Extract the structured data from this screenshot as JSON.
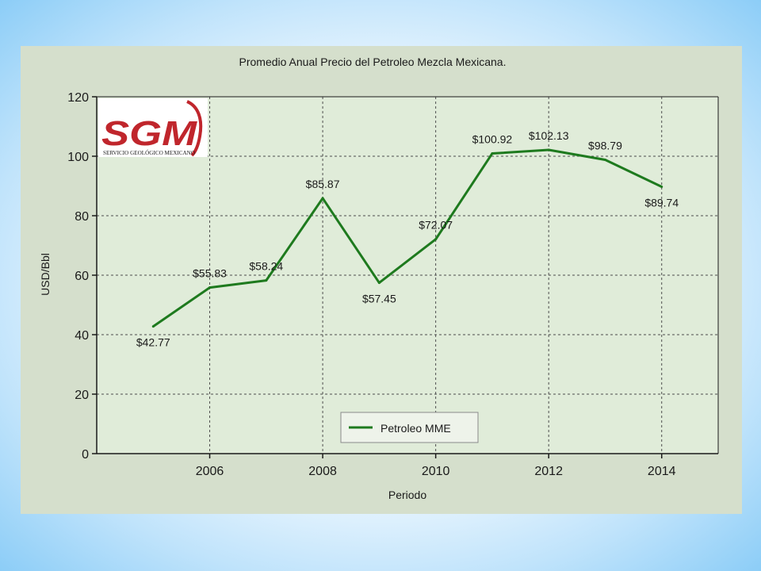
{
  "colors": {
    "frame_bg": "#d5dfcc",
    "plot_bg": "#e0ecd9",
    "series": "#1e7a1e",
    "logo_red": "#c0262c"
  },
  "logo": {
    "text": "SGM",
    "subtitle": "SERVICIO GEOLÓGICO MEXICANO"
  },
  "chart_data": {
    "type": "line",
    "title": "Promedio Anual Precio del Petroleo Mezcla Mexicana.",
    "xlabel": "Periodo",
    "ylabel": "USD/Bbl",
    "x": [
      2005,
      2006,
      2007,
      2008,
      2009,
      2010,
      2011,
      2012,
      2013,
      2014
    ],
    "series": [
      {
        "name": "Petroleo MME",
        "values": [
          42.77,
          55.83,
          58.24,
          85.87,
          57.45,
          72.07,
          100.92,
          102.13,
          98.79,
          89.74
        ],
        "labels": [
          "$42.77",
          "$55.83",
          "$58.24",
          "$85.87",
          "$57.45",
          "$72.07",
          "$100.92",
          "$102.13",
          "$98.79",
          "$89.74"
        ]
      }
    ],
    "xlim": [
      2004,
      2015
    ],
    "ylim": [
      0,
      120
    ],
    "xticks": [
      2006,
      2008,
      2010,
      2012,
      2014
    ],
    "yticks": [
      0,
      20,
      40,
      60,
      80,
      100,
      120
    ],
    "grid": true,
    "legend_position": "bottom-center"
  }
}
